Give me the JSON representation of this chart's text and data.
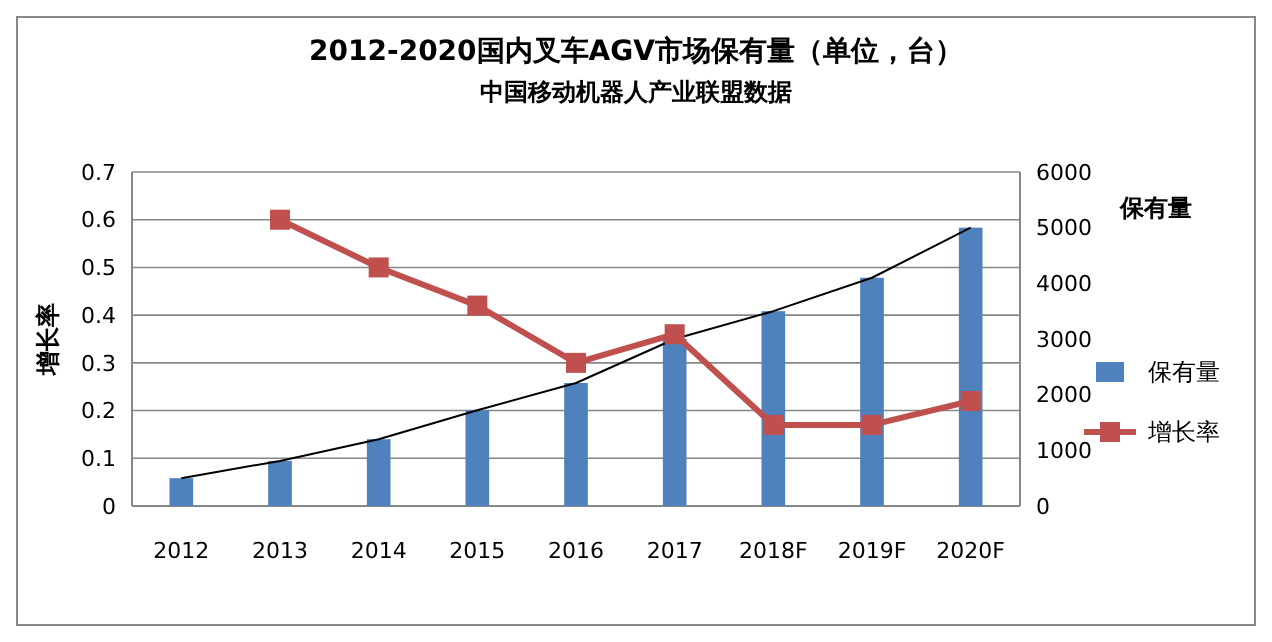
{
  "chart_data": {
    "type": "bar",
    "title": "2012-2020国内叉车AGV市场保有量（单位，台）",
    "subtitle": "中国移动机器人产业联盟数据",
    "ylabel": "增长率",
    "y2label": "保有量",
    "categories": [
      "2012",
      "2013",
      "2014",
      "2015",
      "2016",
      "2017",
      "2018F",
      "2019F",
      "2020F"
    ],
    "series": [
      {
        "name": "保有量",
        "axis": "y2",
        "color": "#4f81bd",
        "values": [
          500,
          810,
          1200,
          1720,
          2210,
          3000,
          3500,
          4100,
          5000
        ]
      },
      {
        "type": "line",
        "axis": "y2",
        "color": "#000000",
        "marker": "none",
        "values": [
          500,
          810,
          1200,
          1720,
          2210,
          3000,
          3500,
          4100,
          5000
        ]
      },
      {
        "name": "增长率",
        "type": "line",
        "color": "#c0504d",
        "marker": "square",
        "values": [
          null,
          0.6,
          0.5,
          0.42,
          0.3,
          0.36,
          0.17,
          0.17,
          0.22
        ]
      }
    ],
    "ylim": [
      0,
      0.7
    ],
    "yticks": [
      0,
      0.1,
      0.2,
      0.3,
      0.4,
      0.5,
      0.6,
      0.7
    ],
    "y2lim": [
      0,
      6000
    ],
    "y2ticks": [
      0,
      1000,
      2000,
      3000,
      4000,
      5000,
      6000
    ],
    "grid": "y",
    "legend": "right"
  }
}
